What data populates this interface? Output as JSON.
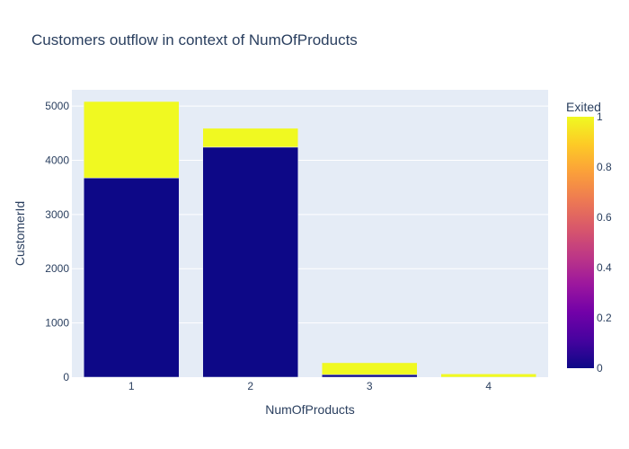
{
  "chart_data": {
    "type": "bar",
    "barmode": "stack",
    "title": "Customers outflow in context of NumOfProducts",
    "xlabel": "NumOfProducts",
    "ylabel": "CustomerId",
    "categories": [
      "1",
      "2",
      "3",
      "4"
    ],
    "ylim": [
      0,
      5300
    ],
    "y_ticks": [
      0,
      1000,
      2000,
      3000,
      4000,
      5000
    ],
    "series": [
      {
        "name": "0",
        "values": [
          3675,
          4242,
          46,
          0
        ]
      },
      {
        "name": "1",
        "values": [
          1409,
          348,
          220,
          60
        ]
      }
    ],
    "colorbar": {
      "title": "Exited",
      "ticks": [
        "0",
        "0.2",
        "0.4",
        "0.6",
        "0.8",
        "1"
      ],
      "colors": [
        "#0d0887",
        "#46039f",
        "#7201a8",
        "#9c179e",
        "#bd3786",
        "#d8576b",
        "#ed7953",
        "#fb9f3a",
        "#fdca26",
        "#f0f921"
      ]
    },
    "plot_background": "#e5ecf6",
    "gridlines": true
  }
}
